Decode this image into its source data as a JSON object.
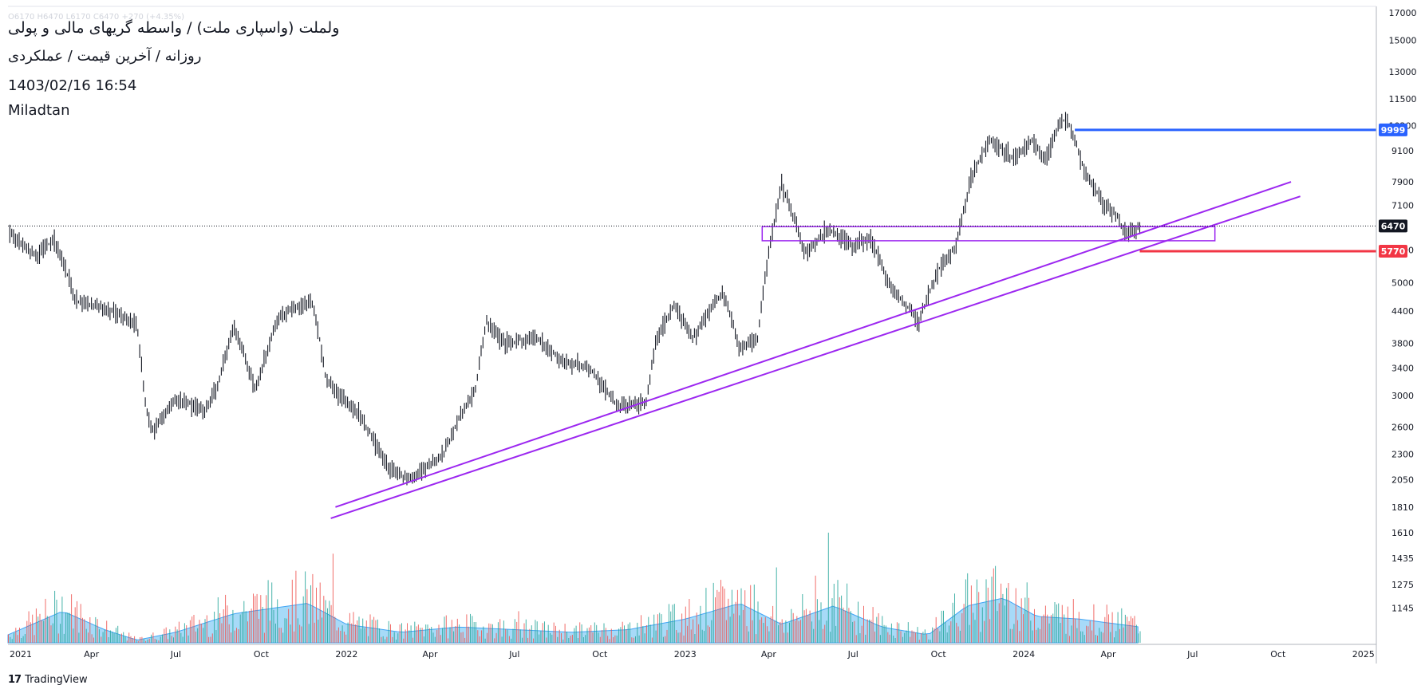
{
  "header": {
    "ohlc_line": "O6170 H6470 L6170 C6470 +270 (+4.35%)",
    "symbol_title": "ولملت (واسپاری ملت) / واسطه گریهای مالی و پولی",
    "subtitle": "روزانه / آخرین قیمت / عملکردی",
    "datetime": "1403/02/16 16:54",
    "author": "Miladtan"
  },
  "footer": {
    "brand_mark": "17",
    "brand_name": "TradingView"
  },
  "colors": {
    "candle": "#131722",
    "trendline": "#9c27f0",
    "zone": "#9c27f0",
    "resistance": "#2962ff",
    "support": "#f23645",
    "current": "#131722",
    "volume_area": "#5ebcf2",
    "volume_up": "#26a69a",
    "volume_down": "#ef5350"
  },
  "chart_data": {
    "type": "candlestick",
    "y_scale": "log",
    "ylim": [
      1000,
      17000
    ],
    "y_ticks": [
      17000,
      15000,
      13000,
      11500,
      10200,
      9100,
      7900,
      7100,
      6470,
      5800,
      5000,
      4400,
      3800,
      3400,
      3000,
      2600,
      2300,
      2050,
      1810,
      1610,
      1435,
      1275,
      1145
    ],
    "x_ticks": [
      "2021",
      "Apr",
      "Jul",
      "Oct",
      "2022",
      "Apr",
      "Jul",
      "Oct",
      "2023",
      "Apr",
      "Jul",
      "Oct",
      "2024",
      "Apr",
      "Jul",
      "Oct",
      "2025"
    ],
    "x_range": [
      "2021-01-01",
      "2025-01-15"
    ],
    "price_path": [
      [
        "2021-01-01",
        6300
      ],
      [
        "2021-02-01",
        5600
      ],
      [
        "2021-02-20",
        6100
      ],
      [
        "2021-03-15",
        4600
      ],
      [
        "2021-04-15",
        4450
      ],
      [
        "2021-05-20",
        4150
      ],
      [
        "2021-05-28",
        2950
      ],
      [
        "2021-06-05",
        2550
      ],
      [
        "2021-07-01",
        2950
      ],
      [
        "2021-08-01",
        2800
      ],
      [
        "2021-08-15",
        3100
      ],
      [
        "2021-09-01",
        4100
      ],
      [
        "2021-09-25",
        3050
      ],
      [
        "2021-10-20",
        4300
      ],
      [
        "2021-11-25",
        4600
      ],
      [
        "2021-12-10",
        3200
      ],
      [
        "2022-01-15",
        2750
      ],
      [
        "2022-02-15",
        2150
      ],
      [
        "2022-03-10",
        2050
      ],
      [
        "2022-04-15",
        2300
      ],
      [
        "2022-05-20",
        3100
      ],
      [
        "2022-06-01",
        4200
      ],
      [
        "2022-06-20",
        3800
      ],
      [
        "2022-07-25",
        3900
      ],
      [
        "2022-08-20",
        3500
      ],
      [
        "2022-09-20",
        3400
      ],
      [
        "2022-10-20",
        2850
      ],
      [
        "2022-11-20",
        2900
      ],
      [
        "2022-12-01",
        3850
      ],
      [
        "2022-12-20",
        4500
      ],
      [
        "2023-01-10",
        3900
      ],
      [
        "2023-02-10",
        4800
      ],
      [
        "2023-03-01",
        3700
      ],
      [
        "2023-03-20",
        3900
      ],
      [
        "2023-04-05",
        6300
      ],
      [
        "2023-04-15",
        7800
      ],
      [
        "2023-05-10",
        5700
      ],
      [
        "2023-06-05",
        6400
      ],
      [
        "2023-07-01",
        5900
      ],
      [
        "2023-07-20",
        6100
      ],
      [
        "2023-08-10",
        4900
      ],
      [
        "2023-09-10",
        4200
      ],
      [
        "2023-10-01",
        5300
      ],
      [
        "2023-10-20",
        5900
      ],
      [
        "2023-11-05",
        8000
      ],
      [
        "2023-11-25",
        9600
      ],
      [
        "2023-12-20",
        8800
      ],
      [
        "2024-01-10",
        9500
      ],
      [
        "2024-01-25",
        8700
      ],
      [
        "2024-02-10",
        10500
      ],
      [
        "2024-02-20",
        10200
      ],
      [
        "2024-03-05",
        8400
      ],
      [
        "2024-03-25",
        7200
      ],
      [
        "2024-04-10",
        6800
      ],
      [
        "2024-04-20",
        6200
      ],
      [
        "2024-05-05",
        6470
      ]
    ],
    "volume_profile": [
      [
        "2021-01-01",
        0.15
      ],
      [
        "2021-03-01",
        0.6
      ],
      [
        "2021-04-15",
        0.25
      ],
      [
        "2021-05-20",
        0.05
      ],
      [
        "2021-07-01",
        0.2
      ],
      [
        "2021-09-01",
        0.55
      ],
      [
        "2021-11-20",
        0.75
      ],
      [
        "2022-01-01",
        0.35
      ],
      [
        "2022-03-01",
        0.2
      ],
      [
        "2022-05-01",
        0.3
      ],
      [
        "2022-07-01",
        0.25
      ],
      [
        "2022-09-01",
        0.2
      ],
      [
        "2022-11-01",
        0.25
      ],
      [
        "2023-01-01",
        0.45
      ],
      [
        "2023-03-01",
        0.75
      ],
      [
        "2023-04-15",
        0.35
      ],
      [
        "2023-06-10",
        0.7
      ],
      [
        "2023-08-01",
        0.3
      ],
      [
        "2023-09-20",
        0.15
      ],
      [
        "2023-11-01",
        0.7
      ],
      [
        "2023-12-10",
        0.85
      ],
      [
        "2024-01-15",
        0.5
      ],
      [
        "2024-03-01",
        0.45
      ],
      [
        "2024-05-05",
        0.3
      ]
    ],
    "drawings": {
      "trendline_upper": {
        "from": [
          "2021-12-20",
          1810
        ],
        "to": [
          "2024-10-15",
          7900
        ]
      },
      "trendline_lower": {
        "from": [
          "2021-12-15",
          1720
        ],
        "to": [
          "2024-10-25",
          7400
        ]
      },
      "support_zone": {
        "from": "2023-03-25",
        "to": "2024-07-25",
        "top": 6450,
        "bottom": 6050
      },
      "resistance_line": {
        "from": "2024-02-25",
        "value": 9999
      },
      "stop_line": {
        "from": "2024-05-05",
        "value": 5770
      }
    },
    "price_labels": [
      {
        "value": 9999,
        "text": "9999",
        "role": "resistance"
      },
      {
        "value": 6470,
        "text": "6470",
        "role": "current"
      },
      {
        "value": 5770,
        "text": "5770",
        "role": "support"
      }
    ]
  }
}
